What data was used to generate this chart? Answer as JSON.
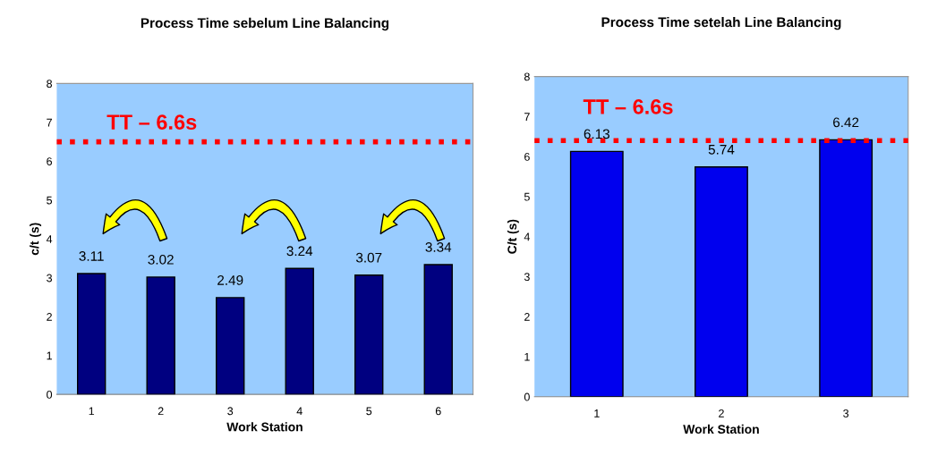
{
  "chart_data": [
    {
      "type": "bar",
      "title": "Process Time sebelum Line Balancing",
      "xlabel": "Work Station",
      "ylabel": "c/t (s)",
      "categories": [
        "1",
        "2",
        "3",
        "4",
        "5",
        "6"
      ],
      "values": [
        3.11,
        3.02,
        2.49,
        3.24,
        3.07,
        3.34
      ],
      "color": "#000080",
      "ylim": [
        0,
        8
      ],
      "yticks": [
        0,
        1,
        2,
        3,
        4,
        5,
        6,
        7,
        8
      ],
      "grid": false,
      "data_labels": true,
      "ref_lines": [
        {
          "axis": "y",
          "value": 6.5,
          "label": "TT – 6.6s",
          "color": "#ff0000",
          "line_style": "dotted"
        }
      ]
    },
    {
      "type": "bar",
      "title": "Process Time setelah Line Balancing",
      "xlabel": "Work Station",
      "ylabel": "C/t (s)",
      "categories": [
        "1",
        "2",
        "3"
      ],
      "values": [
        6.13,
        5.74,
        6.42
      ],
      "color": "#0000ee",
      "ylim": [
        0,
        8
      ],
      "yticks": [
        0,
        1,
        2,
        3,
        4,
        5,
        6,
        7,
        8
      ],
      "grid": false,
      "data_labels": true,
      "ref_lines": [
        {
          "axis": "y",
          "value": 6.4,
          "label": "TT – 6.6s",
          "color": "#ff0000",
          "line_style": "dotted"
        }
      ]
    }
  ]
}
